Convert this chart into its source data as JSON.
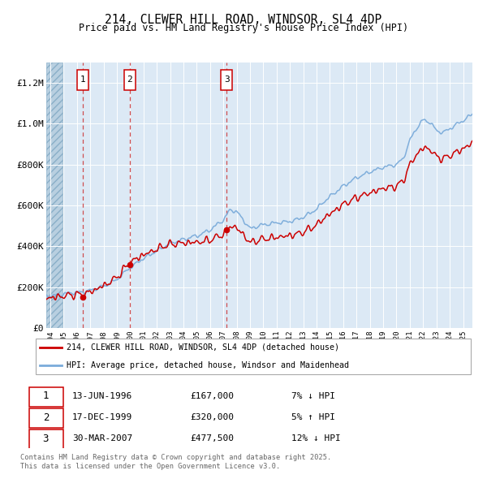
{
  "title": "214, CLEWER HILL ROAD, WINDSOR, SL4 4DP",
  "subtitle": "Price paid vs. HM Land Registry's House Price Index (HPI)",
  "red_label": "214, CLEWER HILL ROAD, WINDSOR, SL4 4DP (detached house)",
  "blue_label": "HPI: Average price, detached house, Windsor and Maidenhead",
  "transactions": [
    {
      "num": 1,
      "date": "13-JUN-1996",
      "price": 167000,
      "pct": "7%",
      "dir": "↓",
      "year": 1996.45
    },
    {
      "num": 2,
      "date": "17-DEC-1999",
      "price": 320000,
      "pct": "5%",
      "dir": "↑",
      "year": 1999.96
    },
    {
      "num": 3,
      "date": "30-MAR-2007",
      "price": 477500,
      "pct": "12%",
      "dir": "↓",
      "year": 2007.24
    }
  ],
  "footnote1": "Contains HM Land Registry data © Crown copyright and database right 2025.",
  "footnote2": "This data is licensed under the Open Government Licence v3.0.",
  "ylim": [
    0,
    1300000
  ],
  "xlim_start": 1993.7,
  "xlim_end": 2025.7,
  "background_color": "#dce9f5",
  "hatch_color": "#b8cfe0",
  "grid_color": "#ffffff",
  "red_color": "#cc0000",
  "blue_color": "#7aabda",
  "dashed_color": "#cc3333"
}
